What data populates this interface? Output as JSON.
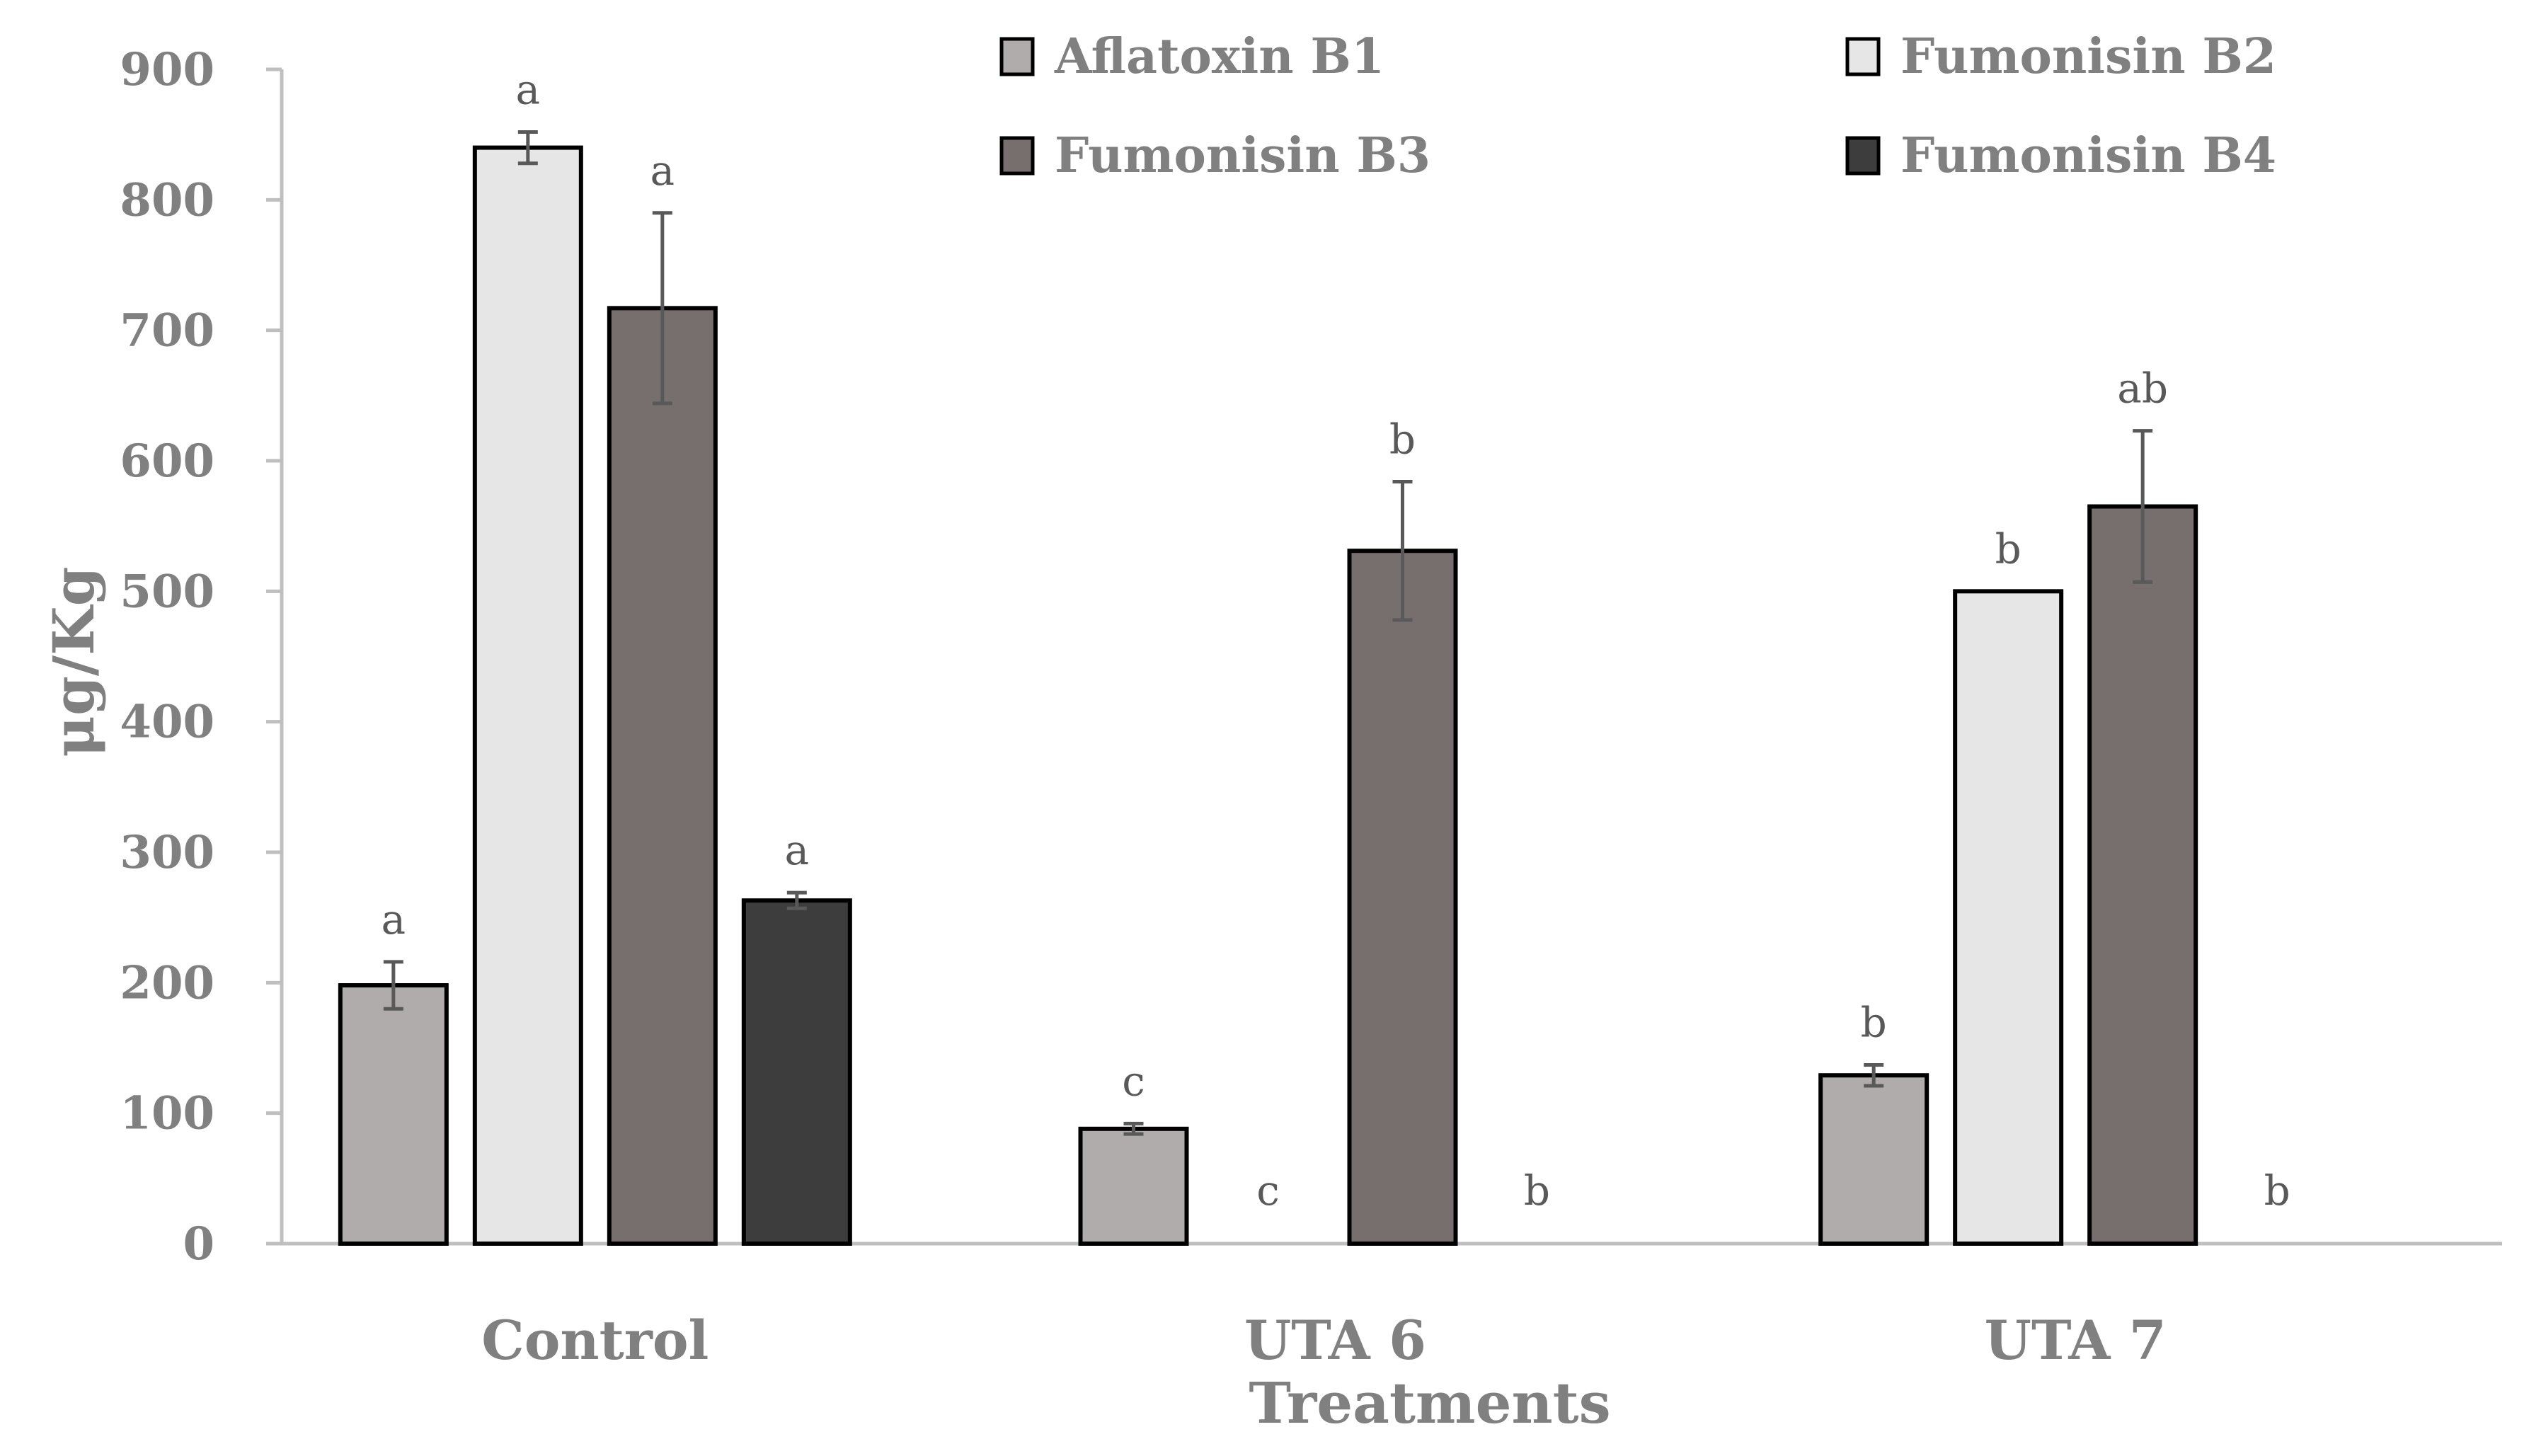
{
  "chart_data": {
    "type": "bar",
    "title": "",
    "xlabel": "Treatments",
    "ylabel": "μg/Kg",
    "ylim": [
      0,
      900
    ],
    "yticks": [
      0,
      100,
      200,
      300,
      400,
      500,
      600,
      700,
      800,
      900
    ],
    "categories": [
      "Control",
      "UTA 6",
      "UTA 7"
    ],
    "legend_position": "top-right",
    "series": [
      {
        "name": "Aflatoxin B1",
        "color": "#b0acab",
        "values": [
          198,
          88,
          129
        ],
        "errors": [
          18,
          4,
          8
        ],
        "labels": [
          "a",
          "c",
          "b"
        ]
      },
      {
        "name": "Fumonisin B2",
        "color": "#e6e6e6",
        "values": [
          840,
          0,
          500
        ],
        "errors": [
          12,
          0,
          0
        ],
        "labels": [
          "a",
          "c",
          "b"
        ]
      },
      {
        "name": "Fumonisin B3",
        "color": "#766f6e",
        "values": [
          717,
          531,
          565
        ],
        "errors": [
          73,
          53,
          58
        ],
        "labels": [
          "a",
          "b",
          "ab"
        ]
      },
      {
        "name": "Fumonisin B4",
        "color": "#3d3d3d",
        "values": [
          263,
          0,
          0
        ],
        "errors": [
          6,
          0,
          0
        ],
        "labels": [
          "a",
          "b",
          "b"
        ]
      }
    ]
  }
}
